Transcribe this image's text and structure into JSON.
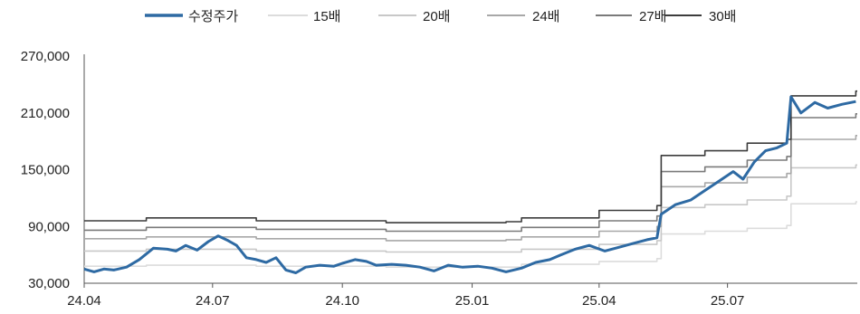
{
  "chart_data": {
    "type": "line",
    "title": "",
    "xlabel": "",
    "ylabel": "",
    "ylim": [
      30000,
      270000
    ],
    "yticks": [
      30000,
      90000,
      150000,
      210000,
      270000
    ],
    "ytick_labels": [
      "30,000",
      "90,000",
      "150,000",
      "210,000",
      "270,000"
    ],
    "xlim": [
      "2024-04",
      "2025-10"
    ],
    "xticks": [
      "2024-04",
      "2024-07",
      "2024-10",
      "2025-01",
      "2025-04",
      "2025-07"
    ],
    "xtick_labels": [
      "24.04",
      "24.07",
      "24.10",
      "25.01",
      "25.04",
      "25.07"
    ],
    "legend_position": "top",
    "grid": false,
    "series": [
      {
        "name": "수정주가",
        "color": "#2e6aa3",
        "points": [
          [
            "2024-04-01",
            45000
          ],
          [
            "2024-04-08",
            42000
          ],
          [
            "2024-04-15",
            45000
          ],
          [
            "2024-04-22",
            44000
          ],
          [
            "2024-05-01",
            47000
          ],
          [
            "2024-05-10",
            55000
          ],
          [
            "2024-05-20",
            67000
          ],
          [
            "2024-05-30",
            66000
          ],
          [
            "2024-06-05",
            64000
          ],
          [
            "2024-06-12",
            70000
          ],
          [
            "2024-06-20",
            65000
          ],
          [
            "2024-06-28",
            74000
          ],
          [
            "2024-07-05",
            80000
          ],
          [
            "2024-07-12",
            75000
          ],
          [
            "2024-07-18",
            70000
          ],
          [
            "2024-07-25",
            57000
          ],
          [
            "2024-08-01",
            55000
          ],
          [
            "2024-08-08",
            52000
          ],
          [
            "2024-08-15",
            57000
          ],
          [
            "2024-08-22",
            44000
          ],
          [
            "2024-08-29",
            41000
          ],
          [
            "2024-09-05",
            47000
          ],
          [
            "2024-09-15",
            49000
          ],
          [
            "2024-09-25",
            48000
          ],
          [
            "2024-10-01",
            51000
          ],
          [
            "2024-10-10",
            55000
          ],
          [
            "2024-10-18",
            53000
          ],
          [
            "2024-10-25",
            49000
          ],
          [
            "2024-11-05",
            50000
          ],
          [
            "2024-11-15",
            49000
          ],
          [
            "2024-11-25",
            47000
          ],
          [
            "2024-12-05",
            43000
          ],
          [
            "2024-12-15",
            49000
          ],
          [
            "2024-12-25",
            47000
          ],
          [
            "2025-01-05",
            48000
          ],
          [
            "2025-01-15",
            46000
          ],
          [
            "2025-01-25",
            42000
          ],
          [
            "2025-02-05",
            46000
          ],
          [
            "2025-02-15",
            52000
          ],
          [
            "2025-02-25",
            55000
          ],
          [
            "2025-03-05",
            60000
          ],
          [
            "2025-03-15",
            66000
          ],
          [
            "2025-03-25",
            70000
          ],
          [
            "2025-04-05",
            64000
          ],
          [
            "2025-04-15",
            68000
          ],
          [
            "2025-04-25",
            72000
          ],
          [
            "2025-05-05",
            76000
          ],
          [
            "2025-05-12",
            78000
          ],
          [
            "2025-05-15",
            103000
          ],
          [
            "2025-05-25",
            113000
          ],
          [
            "2025-06-05",
            118000
          ],
          [
            "2025-06-15",
            128000
          ],
          [
            "2025-06-25",
            138000
          ],
          [
            "2025-07-05",
            148000
          ],
          [
            "2025-07-12",
            140000
          ],
          [
            "2025-07-20",
            158000
          ],
          [
            "2025-07-28",
            170000
          ],
          [
            "2025-08-05",
            173000
          ],
          [
            "2025-08-12",
            178000
          ],
          [
            "2025-08-15",
            227000
          ],
          [
            "2025-08-22",
            210000
          ],
          [
            "2025-09-01",
            221000
          ],
          [
            "2025-09-10",
            215000
          ],
          [
            "2025-09-20",
            219000
          ],
          [
            "2025-09-30",
            222000
          ]
        ]
      },
      {
        "name": "15배",
        "color": "#dcdcdc",
        "points": [
          [
            "2024-04-01",
            48000
          ],
          [
            "2024-05-15",
            49000
          ],
          [
            "2024-08-01",
            48000
          ],
          [
            "2024-11-01",
            47000
          ],
          [
            "2025-01-25",
            47000
          ],
          [
            "2025-02-05",
            50000
          ],
          [
            "2025-04-01",
            53000
          ],
          [
            "2025-05-12",
            56000
          ],
          [
            "2025-05-15",
            82000
          ],
          [
            "2025-06-15",
            85000
          ],
          [
            "2025-07-15",
            88000
          ],
          [
            "2025-08-12",
            91000
          ],
          [
            "2025-08-15",
            114000
          ],
          [
            "2025-09-30",
            116000
          ]
        ]
      },
      {
        "name": "20배",
        "color": "#c8c8c8",
        "points": [
          [
            "2024-04-01",
            64000
          ],
          [
            "2024-05-15",
            66000
          ],
          [
            "2024-08-01",
            64000
          ],
          [
            "2024-11-01",
            63000
          ],
          [
            "2025-01-25",
            63000
          ],
          [
            "2025-02-05",
            66000
          ],
          [
            "2025-04-01",
            71000
          ],
          [
            "2025-05-12",
            75000
          ],
          [
            "2025-05-15",
            110000
          ],
          [
            "2025-06-15",
            113000
          ],
          [
            "2025-07-15",
            118000
          ],
          [
            "2025-08-12",
            122000
          ],
          [
            "2025-08-15",
            152000
          ],
          [
            "2025-09-30",
            155000
          ]
        ]
      },
      {
        "name": "24배",
        "color": "#a8a8a8",
        "points": [
          [
            "2024-04-01",
            77000
          ],
          [
            "2024-05-15",
            79000
          ],
          [
            "2024-08-01",
            77000
          ],
          [
            "2024-11-01",
            75000
          ],
          [
            "2025-01-25",
            76000
          ],
          [
            "2025-02-05",
            79000
          ],
          [
            "2025-04-01",
            85000
          ],
          [
            "2025-05-12",
            90000
          ],
          [
            "2025-05-15",
            132000
          ],
          [
            "2025-06-15",
            136000
          ],
          [
            "2025-07-15",
            142000
          ],
          [
            "2025-08-12",
            146000
          ],
          [
            "2025-08-15",
            182000
          ],
          [
            "2025-09-30",
            186000
          ]
        ]
      },
      {
        "name": "27배",
        "color": "#7a7a7a",
        "points": [
          [
            "2024-04-01",
            86000
          ],
          [
            "2024-05-15",
            89000
          ],
          [
            "2024-08-01",
            87000
          ],
          [
            "2024-11-01",
            85000
          ],
          [
            "2025-01-25",
            85000
          ],
          [
            "2025-02-05",
            89000
          ],
          [
            "2025-04-01",
            96000
          ],
          [
            "2025-05-12",
            101000
          ],
          [
            "2025-05-15",
            148000
          ],
          [
            "2025-06-15",
            153000
          ],
          [
            "2025-07-15",
            160000
          ],
          [
            "2025-08-12",
            164000
          ],
          [
            "2025-08-15",
            205000
          ],
          [
            "2025-09-30",
            209000
          ]
        ]
      },
      {
        "name": "30배",
        "color": "#3c3c3c",
        "points": [
          [
            "2024-04-01",
            96000
          ],
          [
            "2024-05-15",
            99000
          ],
          [
            "2024-08-01",
            96000
          ],
          [
            "2024-11-01",
            94000
          ],
          [
            "2025-01-25",
            95000
          ],
          [
            "2025-02-05",
            99000
          ],
          [
            "2025-04-01",
            107000
          ],
          [
            "2025-05-12",
            112000
          ],
          [
            "2025-05-15",
            165000
          ],
          [
            "2025-06-15",
            170000
          ],
          [
            "2025-07-15",
            178000
          ],
          [
            "2025-08-12",
            182000
          ],
          [
            "2025-08-15",
            228000
          ],
          [
            "2025-09-30",
            233000
          ]
        ]
      }
    ]
  }
}
